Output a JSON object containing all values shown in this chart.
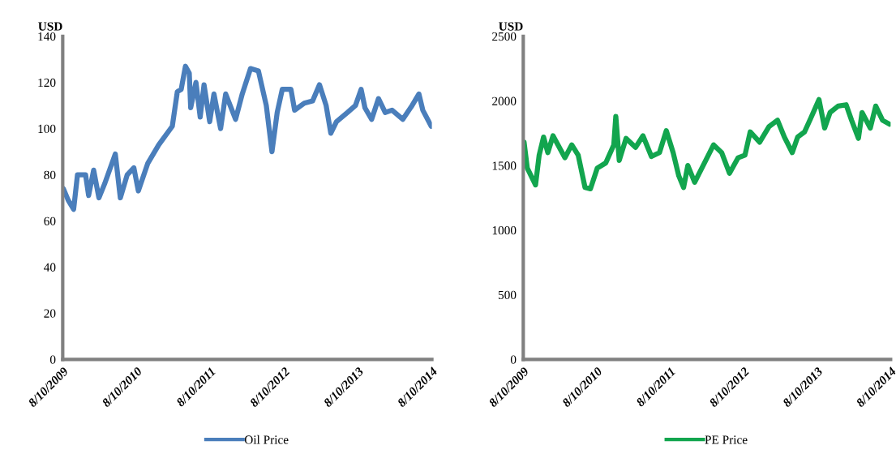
{
  "chart_data": [
    {
      "type": "line",
      "ylabel": "USD",
      "xlim": [
        "2009-08-10",
        "2014-08-10"
      ],
      "xticks": [
        {
          "value": "2009-08-10",
          "label": "8/10/2009"
        },
        {
          "value": "2010-08-10",
          "label": "8/10/2010"
        },
        {
          "value": "2011-08-10",
          "label": "8/10/2011"
        },
        {
          "value": "2012-08-10",
          "label": "8/10/2012"
        },
        {
          "value": "2013-08-10",
          "label": "8/10/2013"
        },
        {
          "value": "2014-08-10",
          "label": "8/10/2014"
        }
      ],
      "ylim": [
        0,
        140
      ],
      "yticks": [
        0,
        20,
        40,
        60,
        80,
        100,
        120,
        140
      ],
      "grid": false,
      "legend": "bottom",
      "x": [
        "2009-08-13",
        "2009-09-06",
        "2009-10-03",
        "2009-10-22",
        "2009-12-01",
        "2009-12-16",
        "2010-01-10",
        "2010-02-05",
        "2010-03-05",
        "2010-04-27",
        "2010-05-22",
        "2010-06-25",
        "2010-07-28",
        "2010-08-19",
        "2010-10-05",
        "2010-11-28",
        "2011-02-03",
        "2011-02-28",
        "2011-03-19",
        "2011-04-09",
        "2011-04-28",
        "2011-05-05",
        "2011-05-31",
        "2011-06-21",
        "2011-07-10",
        "2011-08-07",
        "2011-08-28",
        "2011-09-30",
        "2011-10-25",
        "2011-12-13",
        "2012-01-15",
        "2012-02-25",
        "2012-04-04",
        "2012-05-13",
        "2012-06-10",
        "2012-07-06",
        "2012-07-31",
        "2012-09-12",
        "2012-09-30",
        "2012-11-17",
        "2012-12-28",
        "2013-01-31",
        "2013-03-05",
        "2013-03-28",
        "2013-04-25",
        "2013-06-19",
        "2013-07-28",
        "2013-08-25",
        "2013-09-13",
        "2013-10-16",
        "2013-11-19",
        "2013-12-22",
        "2014-01-25",
        "2014-03-19",
        "2014-05-04",
        "2014-06-07",
        "2014-06-26",
        "2014-08-07"
      ],
      "series": [
        {
          "name": "Oil Price",
          "color": "#4a7ebb",
          "values": [
            74,
            69,
            65,
            80,
            80,
            71,
            82,
            70,
            76,
            89,
            70,
            80,
            83,
            73,
            85,
            93,
            101,
            116,
            117,
            127,
            124,
            109,
            120,
            105,
            119,
            103,
            115,
            100,
            115,
            104,
            115,
            126,
            125,
            110,
            90,
            107,
            117,
            117,
            108,
            111,
            112,
            119,
            110,
            98,
            103,
            107,
            110,
            117,
            109,
            104,
            113,
            107,
            108,
            104,
            110,
            115,
            108,
            101
          ]
        }
      ]
    },
    {
      "type": "line",
      "ylabel": "USD",
      "xlim": [
        "2009-08-10",
        "2014-08-10"
      ],
      "xticks": [
        {
          "value": "2009-08-10",
          "label": "8/10/2009"
        },
        {
          "value": "2010-08-10",
          "label": "8/10/2010"
        },
        {
          "value": "2011-08-10",
          "label": "8/10/2011"
        },
        {
          "value": "2012-08-10",
          "label": "8/10/2012"
        },
        {
          "value": "2013-08-10",
          "label": "8/10/2013"
        },
        {
          "value": "2014-08-10",
          "label": "8/10/2014"
        }
      ],
      "ylim": [
        0,
        2500
      ],
      "yticks": [
        0,
        500,
        1000,
        1500,
        2000,
        2500
      ],
      "grid": false,
      "legend": "bottom",
      "x": [
        "2009-08-14",
        "2009-08-30",
        "2009-10-10",
        "2009-10-28",
        "2009-11-19",
        "2009-12-10",
        "2010-01-05",
        "2010-03-05",
        "2010-04-08",
        "2010-05-10",
        "2010-06-13",
        "2010-07-10",
        "2010-08-13",
        "2010-09-24",
        "2010-11-03",
        "2010-11-13",
        "2010-11-30",
        "2011-01-03",
        "2011-02-19",
        "2011-03-28",
        "2011-05-09",
        "2011-06-18",
        "2011-07-22",
        "2011-08-25",
        "2011-09-22",
        "2011-10-16",
        "2011-11-06",
        "2011-12-10",
        "2012-02-03",
        "2012-03-13",
        "2012-04-22",
        "2012-05-31",
        "2012-07-13",
        "2012-08-16",
        "2012-09-11",
        "2012-10-28",
        "2012-12-13",
        "2013-01-25",
        "2013-02-28",
        "2013-04-08",
        "2013-05-05",
        "2013-06-08",
        "2013-07-10",
        "2013-08-19",
        "2013-09-16",
        "2013-10-13",
        "2013-11-22",
        "2014-01-01",
        "2014-01-28",
        "2014-03-03",
        "2014-03-21",
        "2014-05-01",
        "2014-05-28",
        "2014-07-01",
        "2014-08-04"
      ],
      "series": [
        {
          "name": "PE Price",
          "color": "#12a54e",
          "values": [
            1680,
            1480,
            1350,
            1580,
            1720,
            1600,
            1730,
            1560,
            1660,
            1580,
            1330,
            1320,
            1480,
            1520,
            1660,
            1880,
            1540,
            1710,
            1640,
            1730,
            1570,
            1600,
            1770,
            1600,
            1420,
            1330,
            1500,
            1370,
            1540,
            1660,
            1600,
            1440,
            1560,
            1580,
            1760,
            1680,
            1800,
            1850,
            1720,
            1600,
            1720,
            1760,
            1870,
            2010,
            1790,
            1910,
            1960,
            1970,
            1850,
            1710,
            1910,
            1790,
            1960,
            1850,
            1820
          ]
        }
      ]
    }
  ]
}
